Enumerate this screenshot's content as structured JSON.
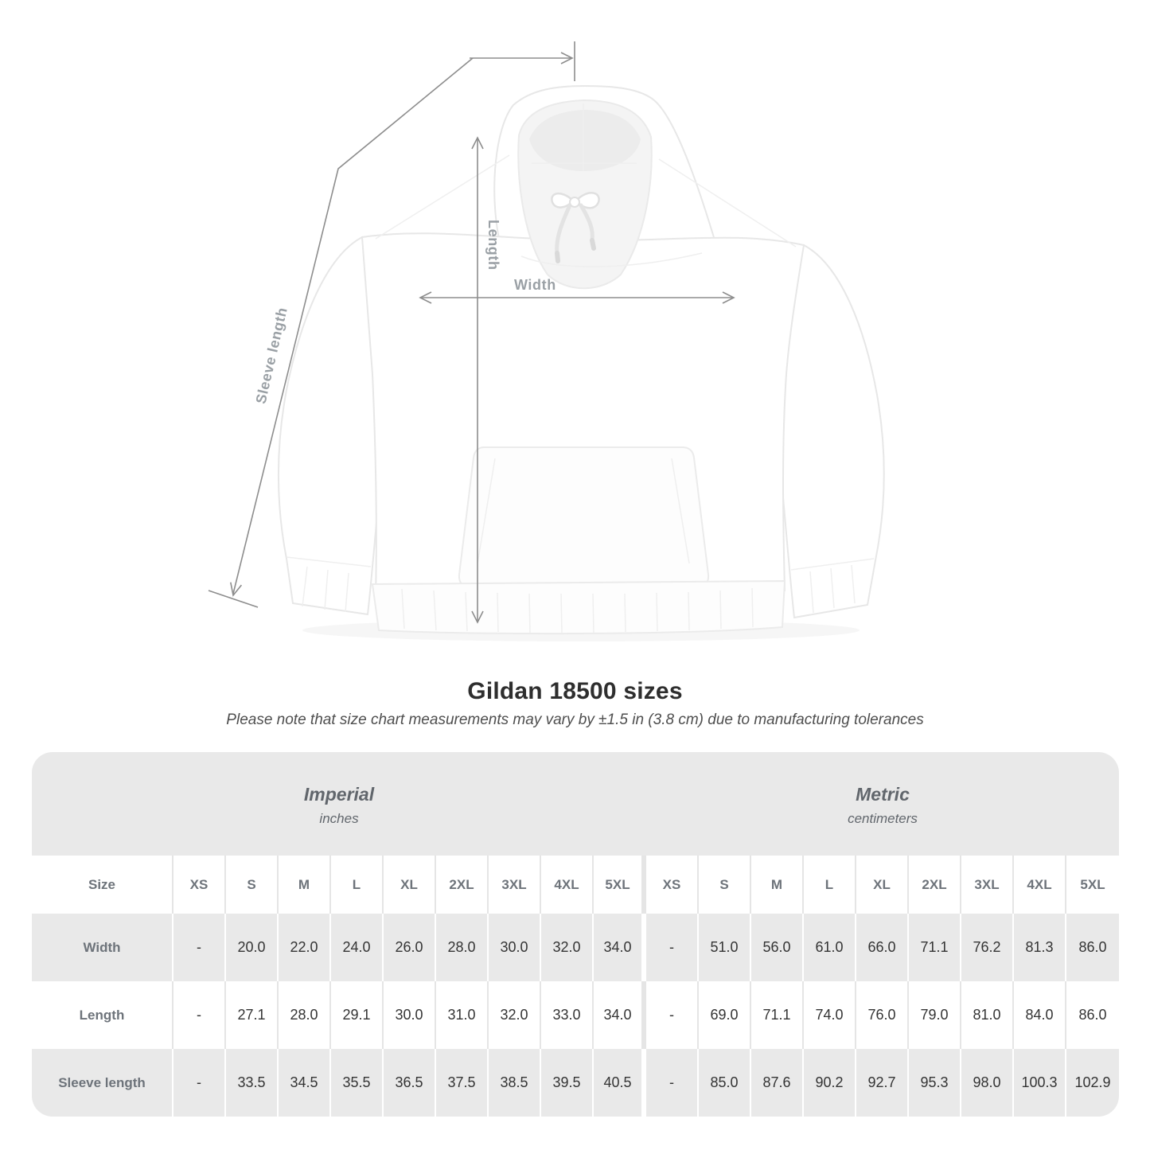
{
  "diagram": {
    "labels": {
      "length": "Length",
      "width": "Width",
      "sleeve": "Sleeve length"
    },
    "colors": {
      "measure_line": "#8d8d8d",
      "measure_label": "#9aa0a5"
    }
  },
  "title": "Gildan 18500 sizes",
  "subtitle": "Please note that size chart measurements may vary by ±1.5 in (3.8 cm) due to manufacturing tolerances",
  "table": {
    "size_header": "Size",
    "sizes": [
      "XS",
      "S",
      "M",
      "L",
      "XL",
      "2XL",
      "3XL",
      "4XL",
      "5XL"
    ],
    "unit_groups": [
      {
        "label": "Imperial",
        "sublabel": "inches"
      },
      {
        "label": "Metric",
        "sublabel": "centimeters"
      }
    ],
    "rows": [
      {
        "label": "Width",
        "imperial": [
          "-",
          "20.0",
          "22.0",
          "24.0",
          "26.0",
          "28.0",
          "30.0",
          "32.0",
          "34.0"
        ],
        "metric": [
          "-",
          "51.0",
          "56.0",
          "61.0",
          "66.0",
          "71.1",
          "76.2",
          "81.3",
          "86.0"
        ]
      },
      {
        "label": "Length",
        "imperial": [
          "-",
          "27.1",
          "28.0",
          "29.1",
          "30.0",
          "31.0",
          "32.0",
          "33.0",
          "34.0"
        ],
        "metric": [
          "-",
          "69.0",
          "71.1",
          "74.0",
          "76.0",
          "79.0",
          "81.0",
          "84.0",
          "86.0"
        ]
      },
      {
        "label": "Sleeve length",
        "imperial": [
          "-",
          "33.5",
          "34.5",
          "35.5",
          "36.5",
          "37.5",
          "38.5",
          "39.5",
          "40.5"
        ],
        "metric": [
          "-",
          "85.0",
          "87.6",
          "90.2",
          "92.7",
          "95.3",
          "98.0",
          "100.3",
          "102.9"
        ]
      }
    ],
    "colors": {
      "row_gray": "#e9e9e9",
      "header_text": "#6d737a",
      "value_text": "#343434"
    }
  }
}
